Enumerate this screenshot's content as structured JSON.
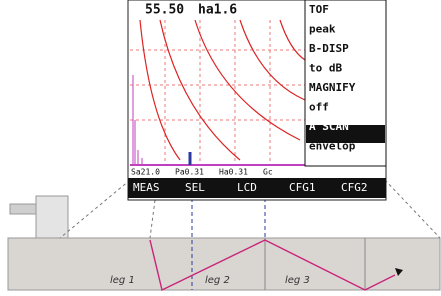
{
  "screen": {
    "readout": [
      "55.50",
      "ha1.6"
    ],
    "menu": [
      "TOF",
      "peak",
      "B-DISP",
      "to dB",
      "MAGNIFY",
      "off",
      "A SCAN",
      "envelop"
    ],
    "status": [
      "Sa21.0",
      "Pa0.31",
      "Ha0.31",
      "Gc"
    ],
    "tabs": [
      "MEAS",
      "SEL",
      "LCD",
      "CFG1",
      "CFG2"
    ]
  },
  "diagram": {
    "legs": [
      "leg 1",
      "leg 2",
      "leg 3"
    ]
  }
}
